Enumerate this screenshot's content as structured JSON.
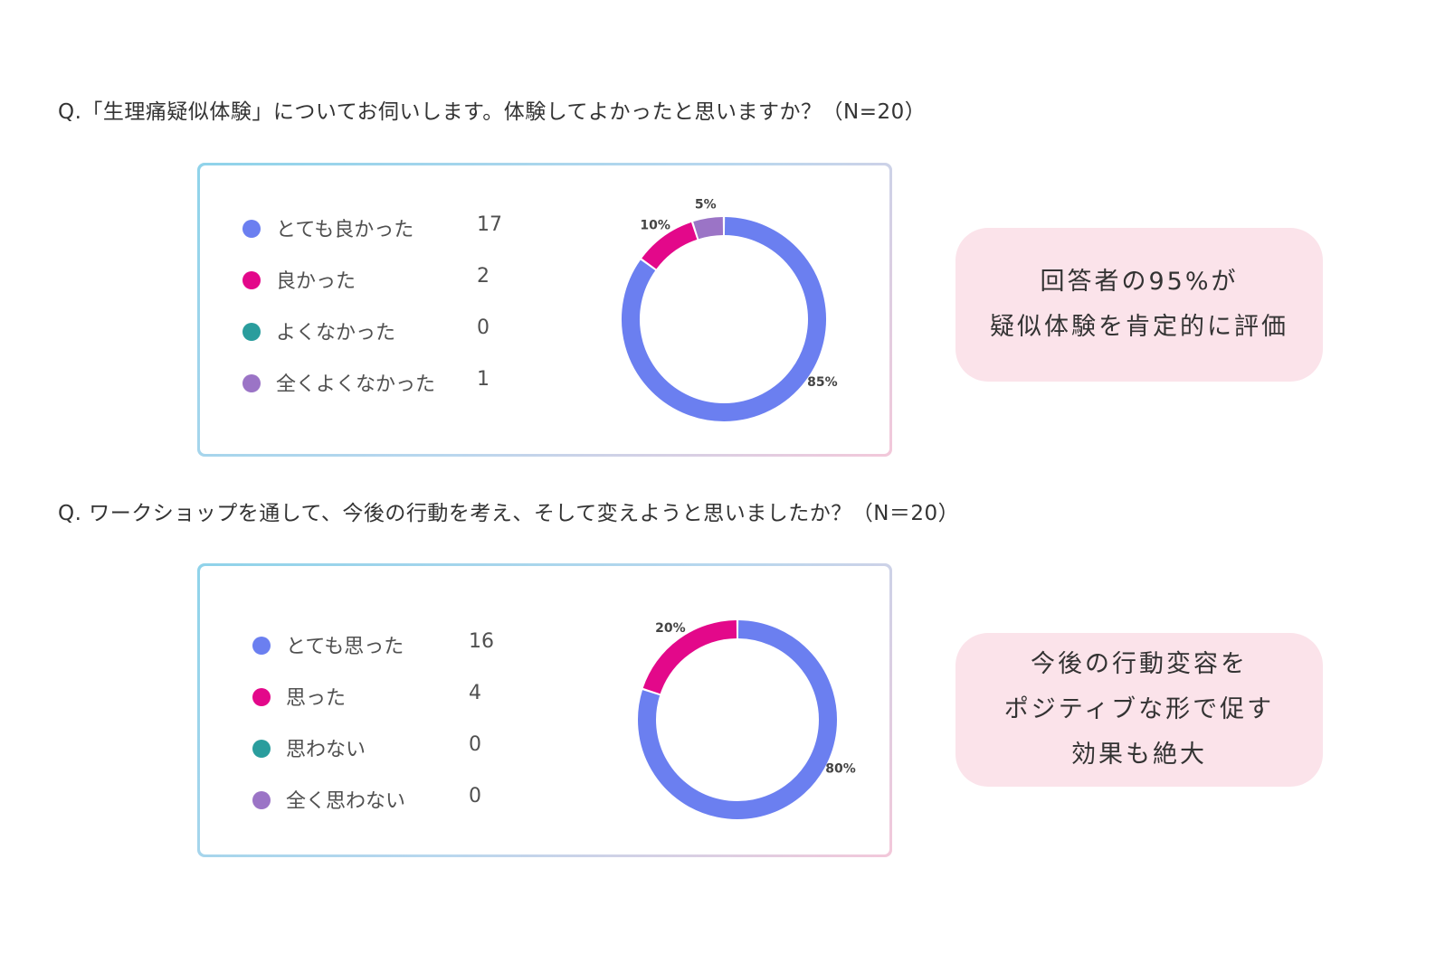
{
  "chart_data": [
    {
      "type": "donut",
      "title": "Q.「生理痛疑似体験」についてお伺いします。体験してよかったと思いますか？（N=20）",
      "categories": [
        "とても良かった",
        "良かった",
        "よくなかった",
        "全くよくなかった"
      ],
      "values": [
        17,
        2,
        0,
        1
      ],
      "percent_labels": [
        "85%",
        "10%",
        "",
        "5%"
      ],
      "colors": [
        "#6b7ff0",
        "#e3088a",
        "#2a9d9d",
        "#9b74c6"
      ],
      "legend_position": "left"
    },
    {
      "type": "donut",
      "title": "Q. ワークショップを通して、今後の行動を考え、そして変えようと思いましたか？（N＝20）",
      "categories": [
        "とても思った",
        "思った",
        "思わない",
        "全く思わない"
      ],
      "values": [
        16,
        4,
        0,
        0
      ],
      "percent_labels": [
        "80%",
        "20%",
        "",
        ""
      ],
      "colors": [
        "#6b7ff0",
        "#e3088a",
        "#2a9d9d",
        "#9b74c6"
      ],
      "legend_position": "left"
    }
  ],
  "callouts": [
    {
      "lines": [
        "回答者の95%が",
        "疑似体験を肯定的に評価"
      ]
    },
    {
      "lines": [
        "今後の行動変容を",
        "ポジティブな形で促す",
        "効果も絶大"
      ]
    }
  ]
}
